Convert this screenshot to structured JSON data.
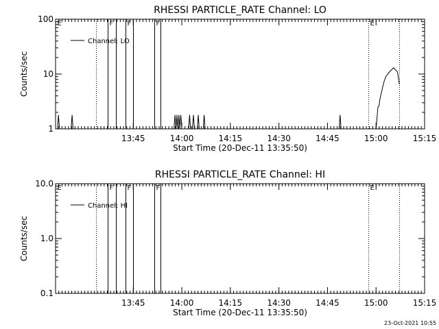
{
  "footer": {
    "timestamp": "23-Oct-2021 10:55"
  },
  "chart_data": [
    {
      "type": "line",
      "title": "RHESSI PARTICLE_RATE Channel: LO",
      "xlabel": "Start Time (20-Dec-11 13:35:50)",
      "ylabel": "Counts/sec",
      "yscale": "log",
      "ylim": [
        1,
        100
      ],
      "y_ticks": [
        1,
        10,
        100
      ],
      "y_tick_labels": [
        "1",
        "10",
        "100"
      ],
      "xlim_minutes": [
        13.35,
        15.25
      ],
      "x_ticks": [
        13.75,
        14.0,
        14.25,
        14.5,
        14.75,
        15.0,
        15.25
      ],
      "x_tick_labels": [
        "13:45",
        "14:00",
        "14:15",
        "14:30",
        "14:45",
        "15:00",
        "15:15"
      ],
      "legend": {
        "entry": "Channel: LO",
        "placement": "top-left"
      },
      "markers": [
        {
          "label": "E",
          "x": 13.35,
          "style": "none"
        },
        {
          "label": "",
          "x": 13.56,
          "style": "dotted"
        },
        {
          "label": "F",
          "x": 13.62,
          "style": "solid"
        },
        {
          "label": "",
          "x": 13.66,
          "style": "solid"
        },
        {
          "label": "F",
          "x": 13.71,
          "style": "solid"
        },
        {
          "label": "",
          "x": 13.75,
          "style": "solid"
        },
        {
          "label": "F",
          "x": 13.86,
          "style": "solid"
        },
        {
          "label": "",
          "x": 13.89,
          "style": "solid"
        },
        {
          "label": "E",
          "x": 14.96,
          "style": "dotted"
        },
        {
          "label": "",
          "x": 15.12,
          "style": "dotted"
        }
      ],
      "series": [
        {
          "name": "",
          "x": [
            13.35,
            13.36,
            13.365,
            13.37,
            13.43,
            13.435,
            13.44,
            13.96,
            13.965,
            13.97,
            13.975,
            13.98,
            13.985,
            13.99,
            13.995,
            14.0,
            14.035,
            14.04,
            14.045,
            14.055,
            14.06,
            14.065,
            14.08,
            14.085,
            14.09,
            14.11,
            14.115,
            14.12,
            14.81,
            14.815,
            14.82,
            15.0,
            15.01,
            15.015,
            15.02,
            15.03,
            15.04,
            15.05,
            15.07,
            15.09,
            15.11,
            15.12
          ],
          "y": [
            1,
            1,
            1.8,
            1,
            1,
            1.8,
            1,
            1,
            1.8,
            1,
            1.8,
            1,
            1.8,
            1,
            1.8,
            1,
            1,
            1.8,
            1,
            1,
            1.8,
            1,
            1,
            1.8,
            1,
            1,
            1.8,
            1,
            1,
            1.8,
            1,
            1,
            2.5,
            2.6,
            3.5,
            5,
            7,
            9,
            11,
            13,
            11,
            6.5
          ]
        }
      ]
    },
    {
      "type": "line",
      "title": "RHESSI PARTICLE_RATE Channel: HI",
      "xlabel": "Start Time (20-Dec-11 13:35:50)",
      "ylabel": "Counts/sec",
      "yscale": "log",
      "ylim": [
        0.1,
        10
      ],
      "y_ticks": [
        0.1,
        1,
        10
      ],
      "y_tick_labels": [
        "0.1",
        "1.0",
        "10.0"
      ],
      "xlim_minutes": [
        13.35,
        15.25
      ],
      "x_ticks": [
        13.75,
        14.0,
        14.25,
        14.5,
        14.75,
        15.0,
        15.25
      ],
      "x_tick_labels": [
        "13:45",
        "14:00",
        "14:15",
        "14:30",
        "14:45",
        "15:00",
        "15:15"
      ],
      "legend": {
        "entry": "Channel: HI",
        "placement": "top-left"
      },
      "markers": [
        {
          "label": "E",
          "x": 13.35,
          "style": "none"
        },
        {
          "label": "",
          "x": 13.56,
          "style": "dotted"
        },
        {
          "label": "F",
          "x": 13.62,
          "style": "solid"
        },
        {
          "label": "",
          "x": 13.66,
          "style": "solid"
        },
        {
          "label": "F",
          "x": 13.71,
          "style": "solid"
        },
        {
          "label": "",
          "x": 13.75,
          "style": "solid"
        },
        {
          "label": "F",
          "x": 13.86,
          "style": "solid"
        },
        {
          "label": "",
          "x": 13.89,
          "style": "solid"
        },
        {
          "label": "E",
          "x": 14.96,
          "style": "dotted"
        },
        {
          "label": "",
          "x": 15.12,
          "style": "dotted"
        }
      ],
      "series": []
    }
  ]
}
